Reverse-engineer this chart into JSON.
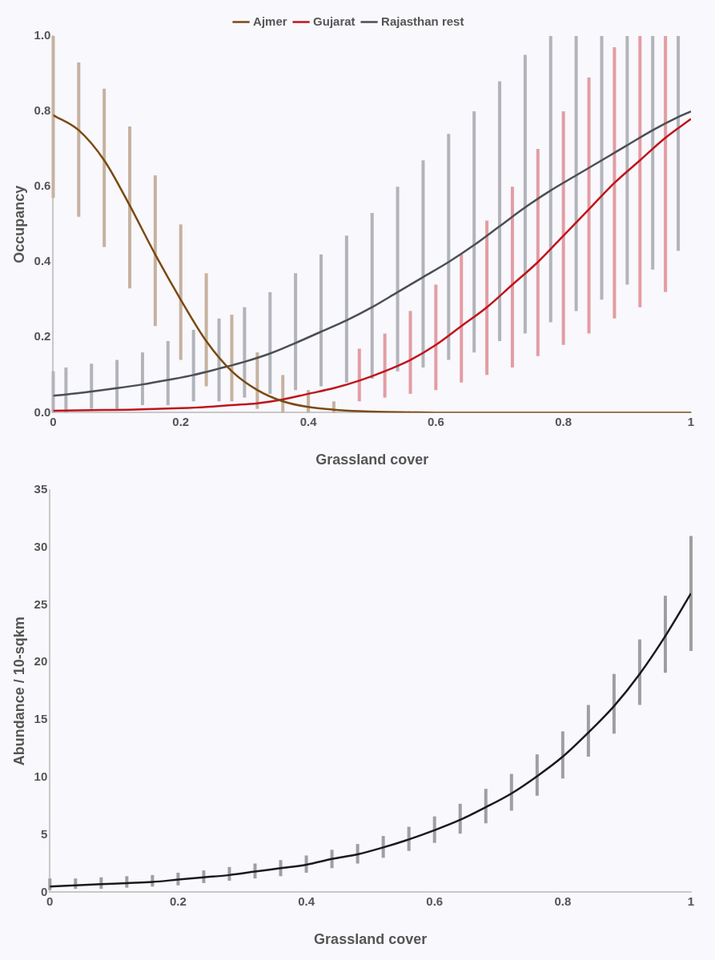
{
  "chart_data": [
    {
      "type": "line",
      "xlabel": "Grassland cover",
      "ylabel": "Occupancy",
      "legend": "top",
      "grid": false,
      "marker": "none",
      "x": [
        0,
        0.04,
        0.08,
        0.12,
        0.16,
        0.2,
        0.24,
        0.28,
        0.32,
        0.36,
        0.4,
        0.44,
        0.48,
        0.52,
        0.56,
        0.6,
        0.64,
        0.68,
        0.72,
        0.76,
        0.8,
        0.84,
        0.88,
        0.92,
        0.96,
        1
      ],
      "xlim": [
        0,
        1
      ],
      "xticks": [
        0,
        0.2,
        0.4,
        0.6,
        0.8,
        1
      ],
      "ylim": [
        0,
        1
      ],
      "yticks": [
        {
          "value": 0,
          "label": "0.0"
        },
        0.2,
        0.4,
        0.6,
        0.8,
        {
          "value": 1,
          "label": "1.0"
        }
      ],
      "series": [
        {
          "name": "Ajmer",
          "color": "#7b4a12",
          "values": [
            0.79,
            0.75,
            0.67,
            0.55,
            0.42,
            0.3,
            0.19,
            0.11,
            0.06,
            0.03,
            0.015,
            0.008,
            0.004,
            0.002,
            0.001,
            0,
            0,
            0,
            0,
            0,
            0,
            0,
            0,
            0,
            0,
            0
          ],
          "errors": [
            [
              0.57,
              1.0
            ],
            [
              0.52,
              0.93
            ],
            [
              0.44,
              0.86
            ],
            [
              0.33,
              0.76
            ],
            [
              0.23,
              0.63
            ],
            [
              0.14,
              0.5
            ],
            [
              0.07,
              0.37
            ],
            [
              0.03,
              0.26
            ],
            [
              0.01,
              0.16
            ],
            [
              0,
              0.1
            ],
            [
              0,
              0.06
            ],
            [
              0,
              0.03
            ],
            null,
            null,
            null,
            null,
            null,
            null,
            null,
            null,
            null,
            null,
            null,
            null,
            null,
            null
          ]
        },
        {
          "name": "Gujarat",
          "color": "#c0141c",
          "values": [
            0.005,
            0.006,
            0.007,
            0.008,
            0.01,
            0.012,
            0.015,
            0.02,
            0.025,
            0.035,
            0.05,
            0.065,
            0.085,
            0.11,
            0.14,
            0.18,
            0.23,
            0.28,
            0.34,
            0.4,
            0.47,
            0.54,
            0.61,
            0.67,
            0.73,
            0.78
          ],
          "errors": [
            null,
            null,
            null,
            null,
            null,
            null,
            null,
            null,
            null,
            null,
            null,
            null,
            [
              0.03,
              0.17
            ],
            [
              0.04,
              0.21
            ],
            [
              0.05,
              0.27
            ],
            [
              0.06,
              0.34
            ],
            [
              0.08,
              0.42
            ],
            [
              0.1,
              0.51
            ],
            [
              0.12,
              0.6
            ],
            [
              0.15,
              0.7
            ],
            [
              0.18,
              0.8
            ],
            [
              0.21,
              0.89
            ],
            [
              0.25,
              0.97
            ],
            [
              0.28,
              1.0
            ],
            [
              0.32,
              1.0
            ],
            null
          ]
        },
        {
          "name": "Rajasthan rest",
          "color": "#4a4f55",
          "x": [
            0,
            0.02,
            0.06,
            0.1,
            0.14,
            0.18,
            0.22,
            0.26,
            0.3,
            0.34,
            0.38,
            0.42,
            0.46,
            0.5,
            0.54,
            0.58,
            0.62,
            0.66,
            0.7,
            0.74,
            0.78,
            0.82,
            0.86,
            0.9,
            0.94,
            0.98,
            1
          ],
          "values": [
            0.045,
            0.048,
            0.056,
            0.065,
            0.075,
            0.087,
            0.1,
            0.117,
            0.135,
            0.157,
            0.185,
            0.215,
            0.245,
            0.28,
            0.32,
            0.36,
            0.4,
            0.445,
            0.495,
            0.545,
            0.59,
            0.63,
            0.67,
            0.71,
            0.75,
            0.785,
            0.8
          ],
          "errors": [
            [
              0,
              0.11
            ],
            [
              0,
              0.12
            ],
            [
              0.01,
              0.13
            ],
            [
              0.01,
              0.14
            ],
            [
              0.02,
              0.16
            ],
            [
              0.02,
              0.19
            ],
            [
              0.03,
              0.22
            ],
            [
              0.03,
              0.25
            ],
            [
              0.04,
              0.28
            ],
            [
              0.05,
              0.32
            ],
            [
              0.06,
              0.37
            ],
            [
              0.07,
              0.42
            ],
            [
              0.08,
              0.47
            ],
            [
              0.09,
              0.53
            ],
            [
              0.11,
              0.6
            ],
            [
              0.12,
              0.67
            ],
            [
              0.14,
              0.74
            ],
            [
              0.16,
              0.8
            ],
            [
              0.19,
              0.88
            ],
            [
              0.21,
              0.95
            ],
            [
              0.24,
              1.0
            ],
            [
              0.27,
              1.0
            ],
            [
              0.3,
              1.0
            ],
            [
              0.34,
              1.0
            ],
            [
              0.38,
              1.0
            ],
            [
              0.43,
              1.0
            ],
            null
          ]
        }
      ]
    },
    {
      "type": "line",
      "xlabel": "Grassland cover",
      "ylabel": "Abundance / 10-sqkm",
      "grid": false,
      "marker": "none",
      "x": [
        0,
        0.04,
        0.08,
        0.12,
        0.16,
        0.2,
        0.24,
        0.28,
        0.32,
        0.36,
        0.4,
        0.44,
        0.48,
        0.52,
        0.56,
        0.6,
        0.64,
        0.68,
        0.72,
        0.76,
        0.8,
        0.84,
        0.88,
        0.92,
        0.96,
        1
      ],
      "xlim": [
        0,
        1
      ],
      "xticks": [
        0,
        0.2,
        0.4,
        0.6,
        0.8,
        1
      ],
      "ylim": [
        0,
        35
      ],
      "yticks": [
        0,
        5,
        10,
        15,
        20,
        25,
        30,
        35
      ],
      "series": [
        {
          "color": "#1a1a1a",
          "values": [
            0.5,
            0.6,
            0.7,
            0.8,
            0.9,
            1.1,
            1.3,
            1.5,
            1.8,
            2.1,
            2.4,
            2.9,
            3.3,
            3.9,
            4.6,
            5.4,
            6.3,
            7.4,
            8.6,
            10.1,
            11.8,
            13.9,
            16.2,
            19,
            22.3,
            26
          ],
          "errors": [
            [
              0.2,
              1.2
            ],
            [
              0.3,
              1.2
            ],
            [
              0.3,
              1.3
            ],
            [
              0.4,
              1.4
            ],
            [
              0.5,
              1.5
            ],
            [
              0.6,
              1.7
            ],
            [
              0.8,
              1.9
            ],
            [
              1,
              2.2
            ],
            [
              1.2,
              2.5
            ],
            [
              1.4,
              2.8
            ],
            [
              1.7,
              3.2
            ],
            [
              2.1,
              3.7
            ],
            [
              2.5,
              4.2
            ],
            [
              3,
              4.9
            ],
            [
              3.6,
              5.7
            ],
            [
              4.3,
              6.6
            ],
            [
              5.1,
              7.7
            ],
            [
              6,
              9
            ],
            [
              7.1,
              10.3
            ],
            [
              8.4,
              12
            ],
            [
              9.9,
              14
            ],
            [
              11.8,
              16.3
            ],
            [
              13.8,
              19
            ],
            [
              16.3,
              22
            ],
            [
              19.1,
              25.8
            ],
            [
              21,
              31
            ]
          ]
        }
      ]
    }
  ]
}
